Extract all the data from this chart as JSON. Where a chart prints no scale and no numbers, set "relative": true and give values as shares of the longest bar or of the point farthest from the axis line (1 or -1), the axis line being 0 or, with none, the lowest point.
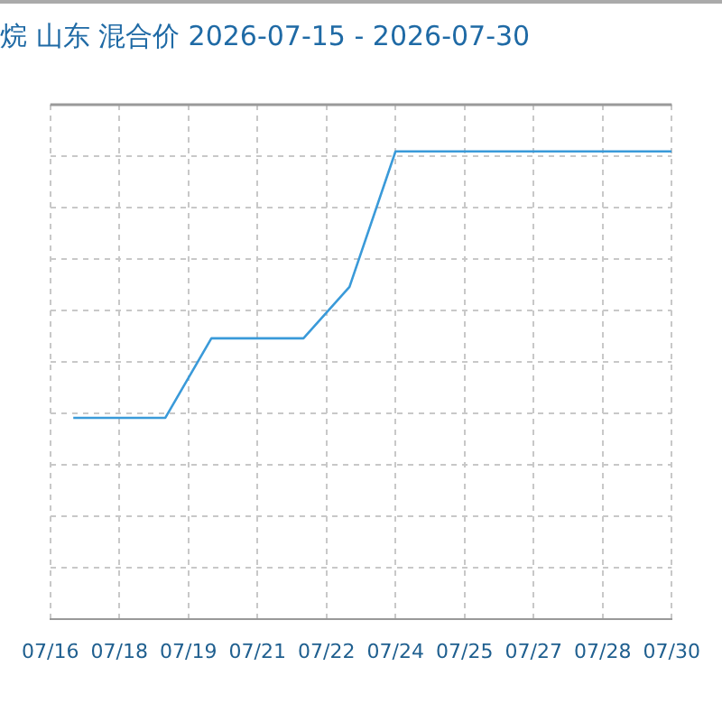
{
  "chart_data": {
    "type": "line",
    "title": "烷 山东 混合价 2026-07-15 - 2026-07-30",
    "x": [
      "2026-07-17",
      "2026-07-18",
      "2026-07-19",
      "2026-07-20",
      "2026-07-21",
      "2026-07-22",
      "2026-07-23",
      "2026-07-24",
      "2026-07-25",
      "2026-07-26",
      "2026-07-27",
      "2026-07-28",
      "2026-07-29",
      "2026-07-30"
    ],
    "series": [
      {
        "color": "#3a9ad9",
        "values": [
          0.43,
          0.43,
          0.43,
          0.6,
          0.6,
          0.6,
          0.71,
          1,
          1,
          1,
          1,
          1,
          1,
          1
        ]
      }
    ],
    "relative": true,
    "xlim": [
      "2026-07-16T12:00",
      "2026-07-30"
    ],
    "xticks": [
      {
        "value": "2026-07-16T12:00",
        "label": "07/16"
      },
      {
        "value": "2026-07-18",
        "label": "07/18"
      },
      {
        "value": "2026-07-19T12:00",
        "label": "07/19"
      },
      {
        "value": "2026-07-21",
        "label": "07/21"
      },
      {
        "value": "2026-07-22T12:00",
        "label": "07/22"
      },
      {
        "value": "2026-07-24",
        "label": "07/24"
      },
      {
        "value": "2026-07-25T12:00",
        "label": "07/25"
      },
      {
        "value": "2026-07-27",
        "label": "07/27"
      },
      {
        "value": "2026-07-28T12:00",
        "label": "07/28"
      },
      {
        "value": "2026-07-30",
        "label": "07/30"
      }
    ],
    "grid": true,
    "legend": false,
    "marker": "none",
    "line_style": "solid"
  }
}
